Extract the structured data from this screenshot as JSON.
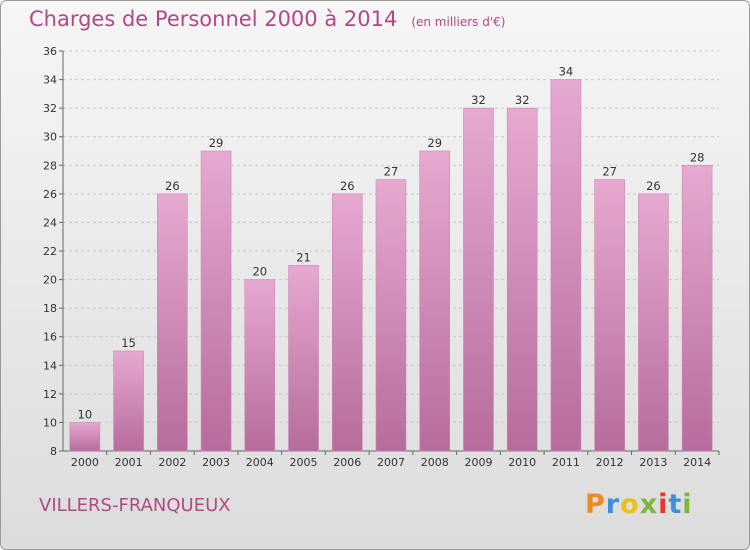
{
  "title": "Charges de Personnel 2000 à 2014",
  "subtitle": "(en milliers d'€)",
  "town": "VILLERS-FRANQUEUX",
  "logo": {
    "letters": [
      "P",
      "r",
      "o",
      "x",
      "i",
      "t",
      "i"
    ],
    "colors": [
      "#f08a1e",
      "#3d8fd6",
      "#e8c21a",
      "#7ab83a",
      "#e33a2c",
      "#3d8fd6",
      "#7ab83a"
    ]
  },
  "colors": {
    "bar_top": "#e6a9d0",
    "bar_bottom": "#b66c9c",
    "text_accent": "#b04a86"
  },
  "chart_data": {
    "type": "bar",
    "title": "Charges de Personnel 2000 à 2014",
    "subtitle": "(en milliers d'€)",
    "xlabel": "",
    "ylabel": "",
    "categories": [
      "2000",
      "2001",
      "2002",
      "2003",
      "2004",
      "2005",
      "2006",
      "2007",
      "2008",
      "2009",
      "2010",
      "2011",
      "2012",
      "2013",
      "2014"
    ],
    "values": [
      10,
      15,
      26,
      29,
      20,
      21,
      26,
      27,
      29,
      32,
      32,
      34,
      27,
      26,
      28
    ],
    "ylim": [
      8,
      36
    ],
    "yticks": [
      8,
      10,
      12,
      14,
      16,
      18,
      20,
      22,
      24,
      26,
      28,
      30,
      32,
      34,
      36
    ],
    "grid": true,
    "legend": "none"
  }
}
